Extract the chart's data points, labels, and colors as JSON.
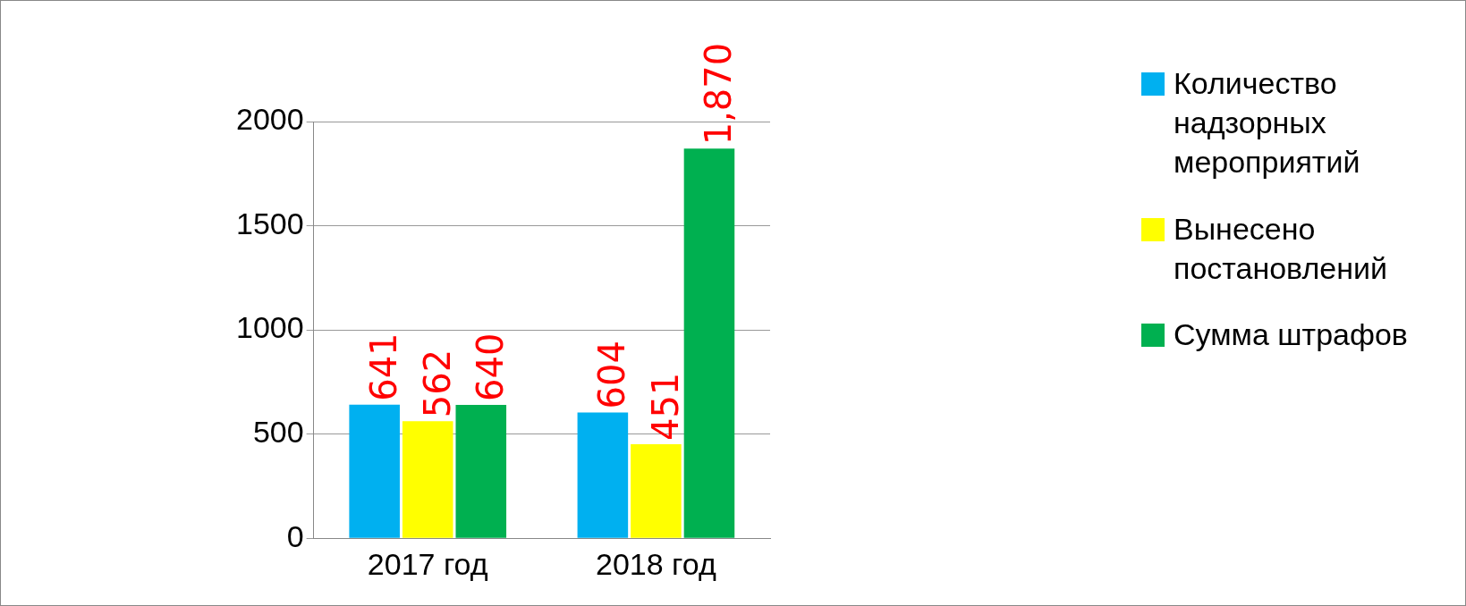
{
  "chart_data": {
    "type": "bar",
    "categories": [
      "2017 год",
      "2018 год"
    ],
    "series": [
      {
        "name": "Количество надзорных мероприятий",
        "color": "#00b0f0",
        "values": [
          641,
          604
        ],
        "value_labels": [
          "641",
          "604"
        ]
      },
      {
        "name": "Вынесено постановлений",
        "color": "#ffff00",
        "values": [
          562,
          451
        ],
        "value_labels": [
          "562",
          "451"
        ]
      },
      {
        "name": "Сумма штрафов",
        "color": "#00b050",
        "values": [
          640,
          1870
        ],
        "value_labels": [
          "640",
          "1,870"
        ]
      }
    ],
    "ylim": [
      0,
      2000
    ],
    "yticks": [
      0,
      500,
      1000,
      1500,
      2000
    ],
    "grid": "y",
    "legend": "right"
  }
}
